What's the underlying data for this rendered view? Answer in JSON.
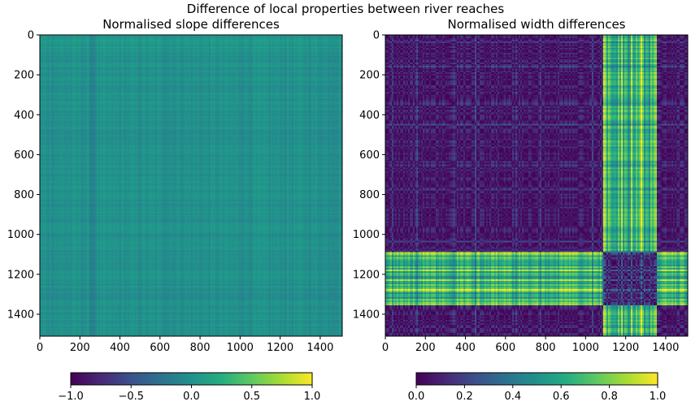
{
  "figure": {
    "suptitle": "Difference of local properties between river reaches"
  },
  "chart_data": [
    {
      "type": "heatmap",
      "title": "Normalised slope differences",
      "xlabel": "",
      "ylabel": "",
      "n": 1510,
      "xlim": [
        0,
        1510
      ],
      "ylim": [
        1510,
        0
      ],
      "xticks": [
        0,
        200,
        400,
        600,
        800,
        1000,
        1200,
        1400
      ],
      "yticks": [
        0,
        200,
        400,
        600,
        800,
        1000,
        1200,
        1400
      ],
      "colormap": "viridis",
      "value_range": [
        -1.0,
        1.0
      ],
      "typical_value": 0.0,
      "pattern": "near-uniform mid values with fine horizontal/vertical banding; darker band near 250",
      "colorbar": {
        "orientation": "horizontal",
        "range": [
          -1.0,
          1.0
        ],
        "ticks": [
          -1.0,
          -0.5,
          0.0,
          0.5,
          1.0
        ],
        "tick_labels": [
          "−1.0",
          "−0.5",
          "0.0",
          "0.5",
          "1.0"
        ]
      }
    },
    {
      "type": "heatmap",
      "title": "Normalised width differences",
      "xlabel": "",
      "ylabel": "",
      "n": 1510,
      "xlim": [
        0,
        1510
      ],
      "ylim": [
        1510,
        0
      ],
      "xticks": [
        0,
        200,
        400,
        600,
        800,
        1000,
        1200,
        1400
      ],
      "yticks": [
        0,
        200,
        400,
        600,
        800,
        1000,
        1200,
        1400
      ],
      "colormap": "viridis",
      "value_range": [
        0.0,
        1.0
      ],
      "high_value_bands": [
        [
          1090,
          1360
        ]
      ],
      "pattern": "symmetric pairwise difference matrix; low values (dark) in most cells, high values (yellow-green) where reaches 1090-1360 meet others",
      "colorbar": {
        "orientation": "horizontal",
        "range": [
          0.0,
          1.0
        ],
        "ticks": [
          0.0,
          0.2,
          0.4,
          0.6,
          0.8,
          1.0
        ],
        "tick_labels": [
          "0.0",
          "0.2",
          "0.4",
          "0.6",
          "0.8",
          "1.0"
        ]
      }
    }
  ]
}
